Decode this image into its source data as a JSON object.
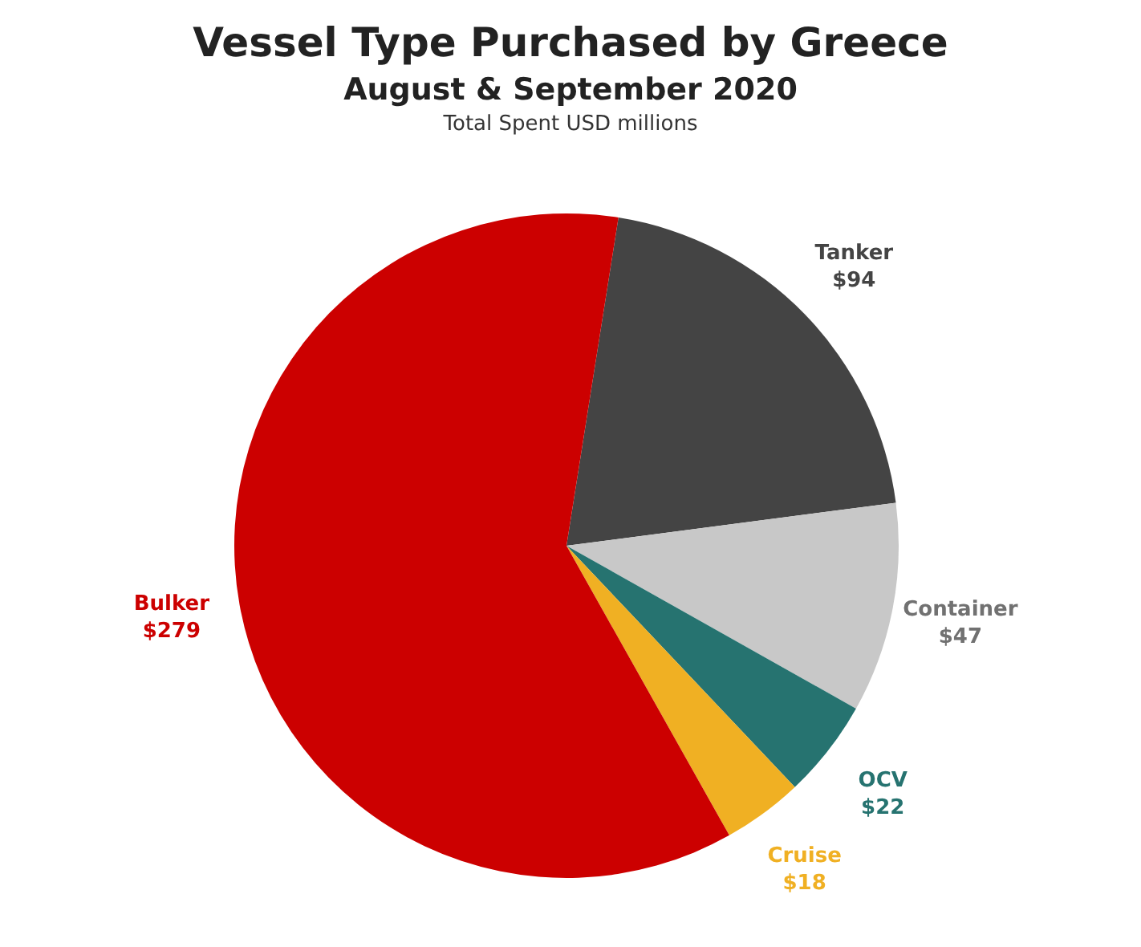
{
  "chart_data": {
    "type": "pie",
    "title": "Vessel Type Purchased by Greece",
    "subtitle": "August & September 2020",
    "annotations": [
      "Total Spent USD millions"
    ],
    "categories": [
      "Tanker",
      "Container",
      "OCV",
      "Cruise",
      "Bulker"
    ],
    "values": [
      94,
      47,
      22,
      18,
      279
    ],
    "colors": [
      "#444444",
      "#c8c8c8",
      "#267370",
      "#f0b023",
      "#cc0000"
    ],
    "value_labels": [
      "$94",
      "$47",
      "$22",
      "$18",
      "$279"
    ]
  }
}
